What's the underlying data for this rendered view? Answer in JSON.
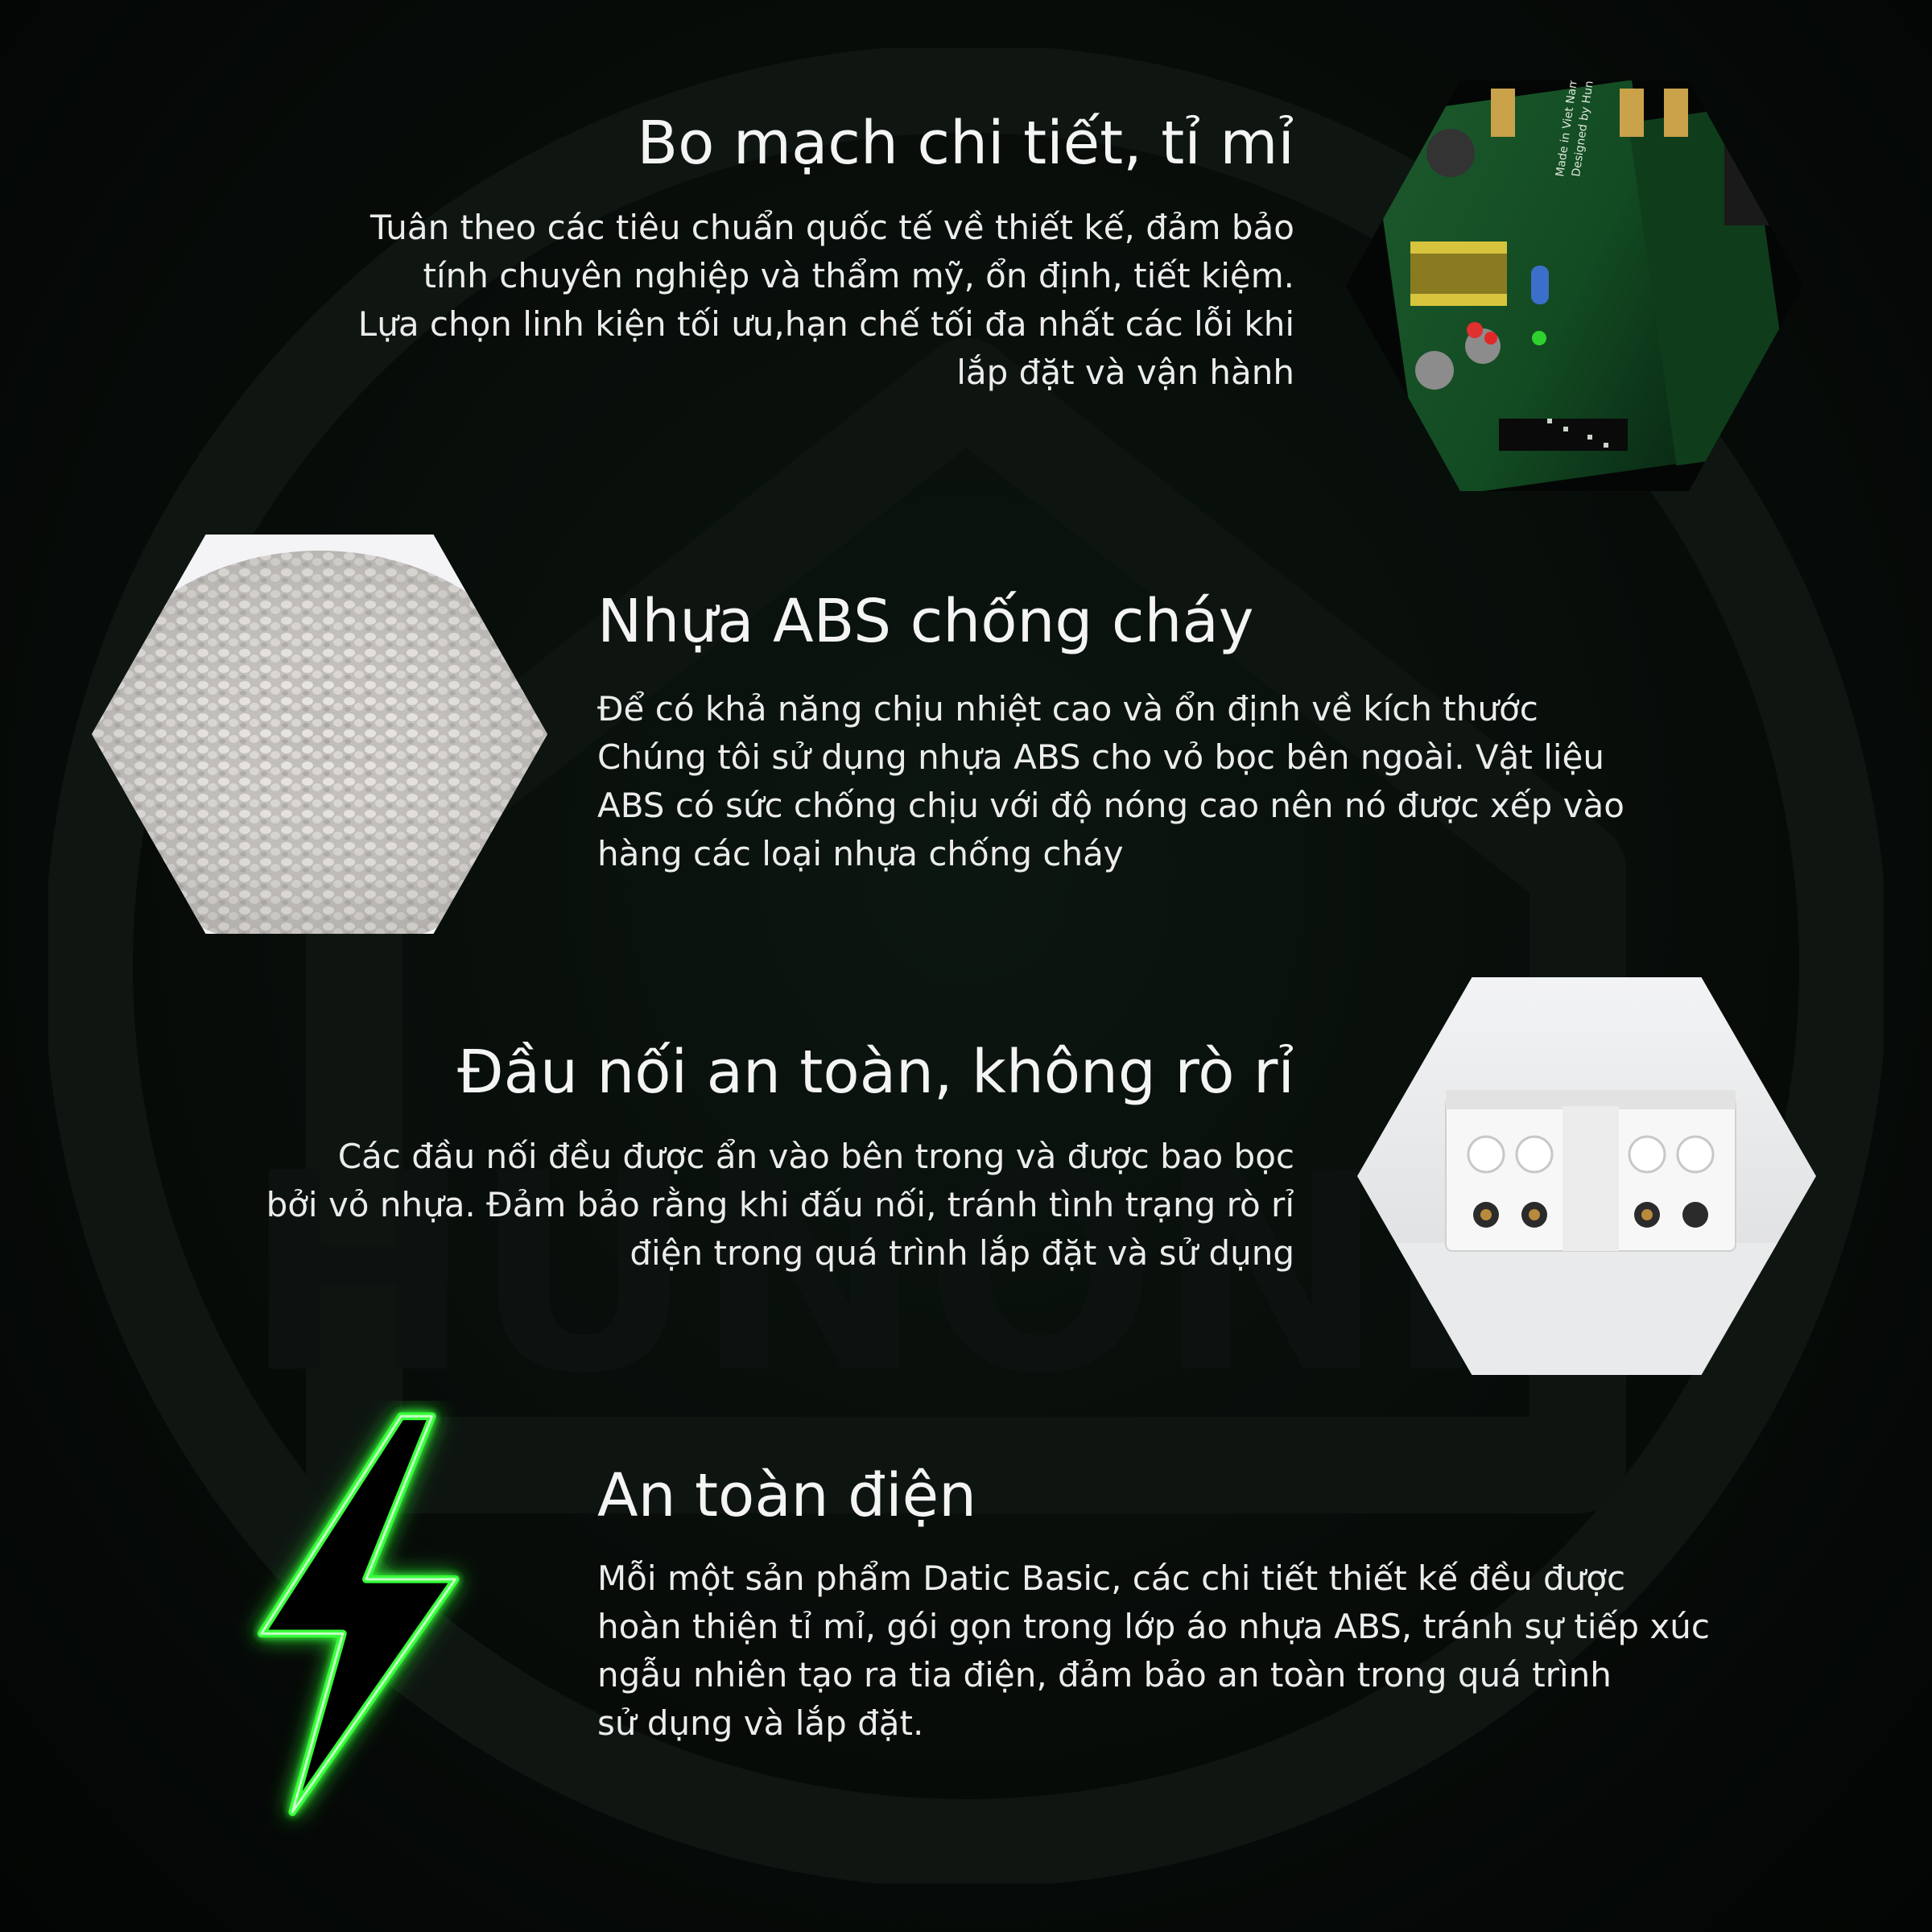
{
  "background_color": "#050806",
  "accent_color": "#39ff3a",
  "watermark": {
    "text": "HUNONIC",
    "icon": "house-logo-icon"
  },
  "sections": [
    {
      "title": "Bo mạch chi tiết, tỉ mỉ",
      "lines": [
        "Tuân theo các tiêu chuẩn quốc tế về thiết kế, đảm bảo",
        "tính chuyên nghiệp và thẩm mỹ, ổn định, tiết kiệm.",
        "Lựa chọn  linh kiện tối ưu,hạn chế tối đa nhất các lỗi khi",
        "lắp đặt và vận hành"
      ],
      "image": "circuit-board-image",
      "board_text": "Made in Viet Nam\nDesigned by Hunonic"
    },
    {
      "title": "Nhựa ABS chống cháy",
      "lines": [
        "Để có khả năng chịu nhiệt cao và ổn định về kích thước",
        "Chúng tôi sử dụng nhựa ABS cho vỏ bọc bên ngoài. Vật liệu",
        "ABS có sức chống chịu với độ nóng cao nên nó được xếp vào",
        "hàng các loại nhựa chống cháy"
      ],
      "image": "abs-plastic-pellets-image"
    },
    {
      "title": "Đầu nối an toàn, không rò rỉ",
      "lines": [
        "Các đầu nối đều được ẩn  vào bên trong và được bao bọc",
        "bởi vỏ nhựa. Đảm bảo rằng khi đấu nối, tránh tình trạng rò rỉ",
        "điện trong quá trình lắp đặt và sử dụng"
      ],
      "image": "terminal-connector-image"
    },
    {
      "title": "An toàn điện",
      "lines": [
        "Mỗi một sản phẩm Datic Basic, các chi tiết thiết kế đều được",
        "hoàn thiện tỉ mỉ, gói gọn trong lớp áo nhựa ABS, tránh sự tiếp xúc",
        "ngẫu nhiên tạo ra tia điện, đảm bảo an toàn trong quá trình",
        "sử dụng và lắp đặt."
      ],
      "image": "lightning-bolt-image"
    }
  ]
}
